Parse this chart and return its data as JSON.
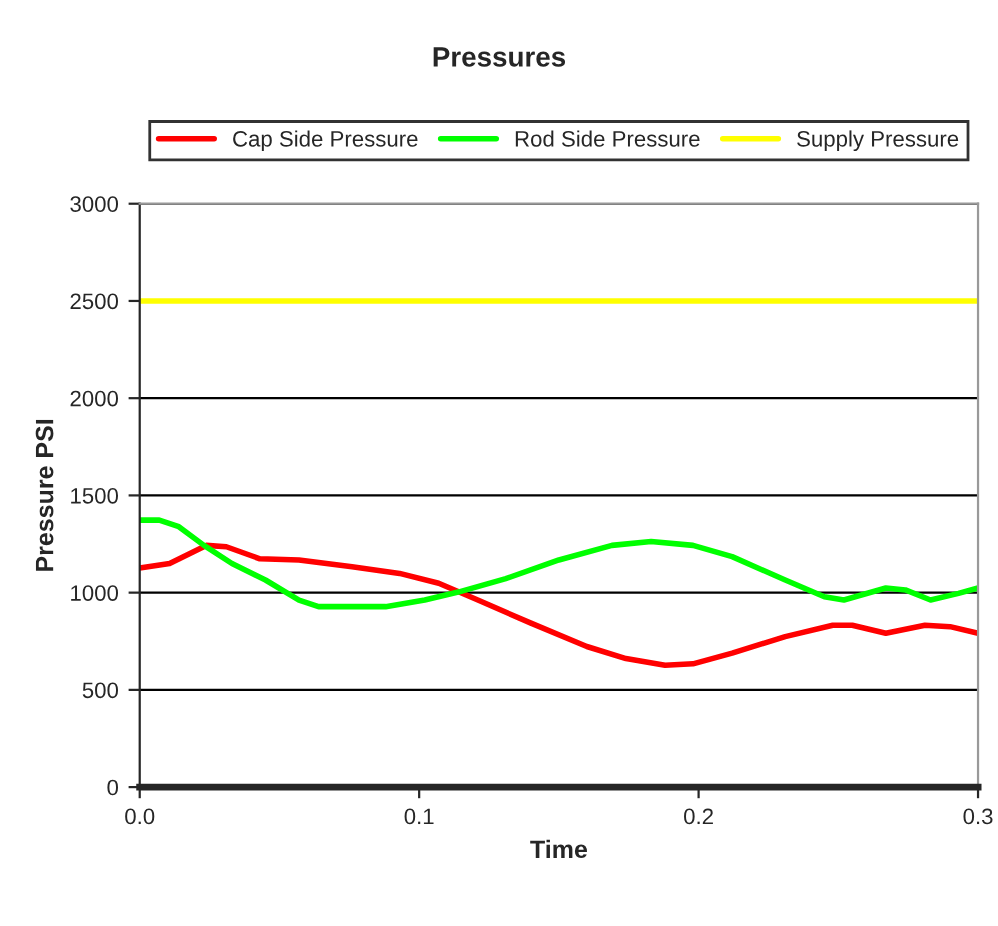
{
  "chart_data": {
    "type": "line",
    "title": "Pressures",
    "xlabel": "Time",
    "ylabel": "Pressure PSI",
    "xlim": [
      0,
      0.3
    ],
    "xticks": [
      {
        "value": 0,
        "label": "0.0"
      },
      0.1,
      0.2,
      0.3
    ],
    "ylim": [
      0,
      3000
    ],
    "yticks": [
      0,
      500,
      1000,
      1500,
      2000,
      2500,
      3000
    ],
    "grid": "y",
    "legend": "top",
    "marker": "none",
    "line_style": "solid",
    "series": [
      {
        "name": "Cap Side Pressure",
        "color": "#ff0000",
        "x": [
          0,
          0.0107,
          0.0238,
          0.031,
          0.043,
          0.057,
          0.076,
          0.093,
          0.107,
          0.121,
          0.14,
          0.16,
          0.174,
          0.188,
          0.198,
          0.212,
          0.231,
          0.248,
          0.255,
          0.267,
          0.281,
          0.29,
          0.3
        ],
        "values": [
          1127,
          1150,
          1243,
          1236,
          1174,
          1168,
          1133,
          1099,
          1048,
          962,
          843,
          723,
          661,
          627,
          634,
          689,
          774,
          832,
          832,
          791,
          832,
          825,
          791
        ]
      },
      {
        "name": "Rod Side Pressure",
        "color": "#00ff00",
        "x": [
          0,
          0.007,
          0.014,
          0.023,
          0.033,
          0.045,
          0.057,
          0.064,
          0.088,
          0.102,
          0.114,
          0.131,
          0.15,
          0.169,
          0.183,
          0.198,
          0.212,
          0.231,
          0.245,
          0.252,
          0.267,
          0.274,
          0.283,
          0.293,
          0.3
        ],
        "values": [
          1373,
          1373,
          1339,
          1243,
          1150,
          1065,
          962,
          928,
          928,
          962,
          1003,
          1072,
          1168,
          1243,
          1263,
          1243,
          1185,
          1065,
          979,
          962,
          1024,
          1014,
          962,
          996,
          1024
        ]
      },
      {
        "name": "Supply Pressure",
        "color": "#ffff00",
        "x": [
          0,
          0.3
        ],
        "values": [
          2500,
          2500
        ]
      }
    ]
  }
}
